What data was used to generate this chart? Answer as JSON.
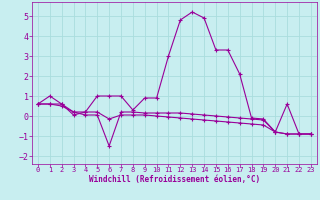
{
  "xlabel": "Windchill (Refroidissement éolien,°C)",
  "background_color": "#c8eef0",
  "grid_color": "#aadddd",
  "line_color": "#990099",
  "x": [
    0,
    1,
    2,
    3,
    4,
    5,
    6,
    7,
    8,
    9,
    10,
    11,
    12,
    13,
    14,
    15,
    16,
    17,
    18,
    19,
    20,
    21,
    22,
    23
  ],
  "line1": [
    0.6,
    1.0,
    0.6,
    0.05,
    0.2,
    1.0,
    1.0,
    1.0,
    0.3,
    0.9,
    0.9,
    3.0,
    4.8,
    5.2,
    4.9,
    3.3,
    3.3,
    2.1,
    -0.1,
    -0.15,
    -0.8,
    0.6,
    -0.9,
    -0.9
  ],
  "line2": [
    0.6,
    0.6,
    0.6,
    0.2,
    0.05,
    0.05,
    -1.5,
    0.2,
    0.2,
    0.15,
    0.15,
    0.15,
    0.15,
    0.1,
    0.05,
    0.0,
    -0.05,
    -0.1,
    -0.15,
    -0.2,
    -0.8,
    -0.9,
    -0.9,
    -0.9
  ],
  "line3": [
    0.6,
    0.6,
    0.5,
    0.2,
    0.2,
    0.2,
    -0.15,
    0.05,
    0.05,
    0.05,
    0.0,
    -0.05,
    -0.1,
    -0.15,
    -0.2,
    -0.25,
    -0.3,
    -0.35,
    -0.4,
    -0.45,
    -0.8,
    -0.9,
    -0.9,
    -0.9
  ],
  "ylim": [
    -2.4,
    5.7
  ],
  "xlim": [
    -0.5,
    23.5
  ],
  "yticks": [
    -2,
    -1,
    0,
    1,
    2,
    3,
    4,
    5
  ],
  "xticks": [
    0,
    1,
    2,
    3,
    4,
    5,
    6,
    7,
    8,
    9,
    10,
    11,
    12,
    13,
    14,
    15,
    16,
    17,
    18,
    19,
    20,
    21,
    22,
    23
  ]
}
